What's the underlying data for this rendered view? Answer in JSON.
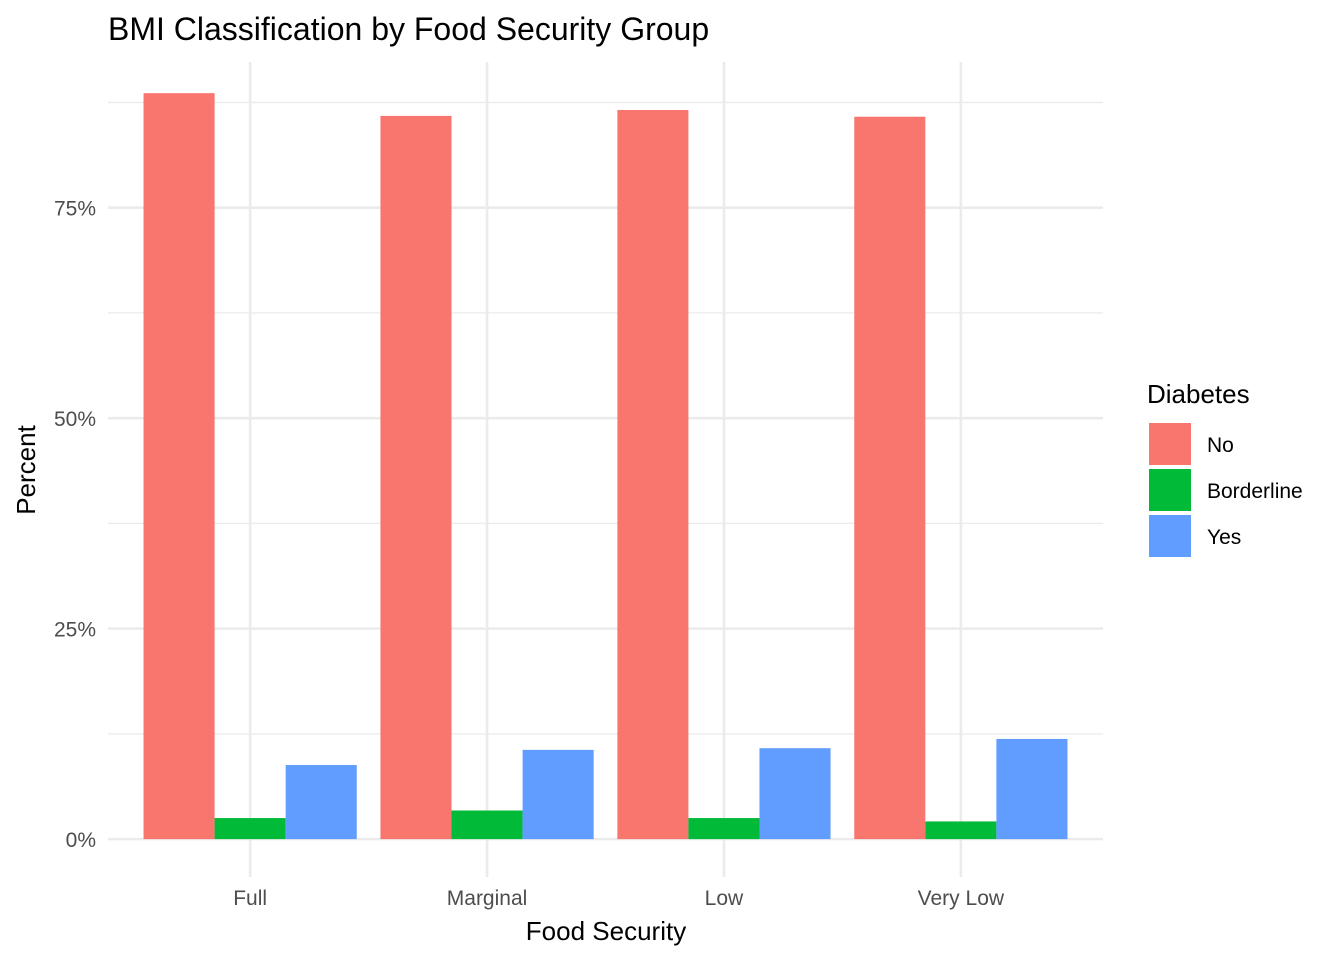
{
  "chart_data": {
    "type": "bar",
    "title": "BMI Classification by Food Security Group",
    "xlabel": "Food Security",
    "ylabel": "Percent",
    "categories": [
      "Full",
      "Marginal",
      "Low",
      "Very Low"
    ],
    "y_tick_values": [
      0,
      25,
      50,
      75
    ],
    "y_tick_labels": [
      "0%",
      "25%",
      "50%",
      "75%"
    ],
    "ylim": [
      -4.5,
      92.3
    ],
    "grid": true,
    "legend_title": "Diabetes",
    "legend_position": "right",
    "series": [
      {
        "name": "No",
        "color": "#F8766D",
        "values": [
          88.6,
          85.9,
          86.6,
          85.8
        ]
      },
      {
        "name": "Borderline",
        "color": "#00BA38",
        "values": [
          2.5,
          3.4,
          2.5,
          2.1
        ]
      },
      {
        "name": "Yes",
        "color": "#619CFF",
        "values": [
          8.8,
          10.6,
          10.8,
          11.9
        ]
      }
    ]
  }
}
